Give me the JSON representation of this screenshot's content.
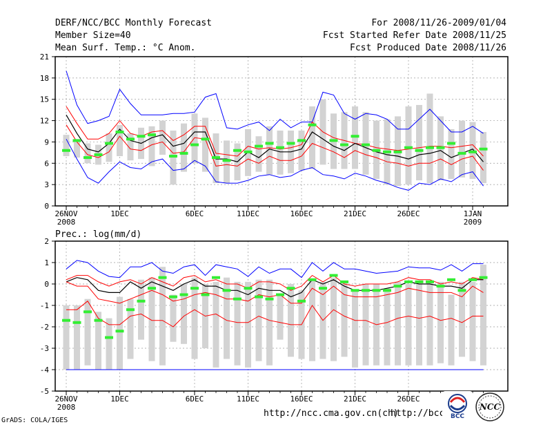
{
  "header": {
    "title": "DERF/NCC/BCC Monthly Forecast",
    "member": "Member Size=40",
    "variable": "Mean Surf. Temp.: °C Anom.",
    "period": "For 2008/11/26-2009/01/04",
    "started": "Fcst Started Refer Date 2008/11/25",
    "produced": "Fcst Produced Date 2008/11/26"
  },
  "footer": {
    "credit": "GrADS: COLA/IGES",
    "url1": "http://ncc.cma.gov.cn(ch)",
    "url2": "http://bcc.",
    "logo_bcc": "BCC",
    "logo_ncc": "NCC"
  },
  "colors": {
    "envelope_outer": "#0000ff",
    "envelope_inner": "#ff0000",
    "mean": "#000000",
    "bar": "#d3d3d3",
    "observed": "#33ee33"
  },
  "chart_data": [
    {
      "type": "line",
      "title": "Mean Surf. Temp.: °C Anom.",
      "ylim": [
        0,
        21
      ],
      "yticks": [
        0,
        3,
        6,
        9,
        12,
        15,
        18,
        21
      ],
      "xticks": [
        {
          "day": 0,
          "label": "26NOV",
          "sub": "2008"
        },
        {
          "day": 5,
          "label": "1DEC"
        },
        {
          "day": 12,
          "label": "6DEC"
        },
        {
          "day": 17,
          "label": "11DEC"
        },
        {
          "day": 22,
          "label": "16DEC"
        },
        {
          "day": 27,
          "label": "21DEC"
        },
        {
          "day": 32,
          "label": "26DEC"
        },
        {
          "day": 38,
          "label": "1JAN",
          "sub": "2009"
        }
      ],
      "series": [
        {
          "name": "max",
          "color": "#0000ff",
          "values": [
            19.0,
            14.2,
            11.6,
            12.0,
            12.6,
            16.4,
            14.4,
            12.8,
            12.8,
            12.8,
            13.0,
            13.0,
            13.2,
            15.3,
            15.8,
            11.0,
            10.8,
            11.4,
            11.8,
            10.6,
            12.2,
            11.0,
            11.8,
            11.8,
            16.0,
            15.6,
            13.0,
            12.2,
            13.0,
            12.8,
            12.2,
            10.8,
            10.8,
            12.2,
            13.6,
            12.0,
            10.4,
            10.4,
            11.2,
            10.2
          ]
        },
        {
          "name": "p75",
          "color": "#ff0000",
          "values": [
            14.0,
            11.6,
            9.4,
            9.4,
            10.2,
            12.0,
            10.2,
            9.8,
            10.4,
            10.6,
            9.2,
            10.0,
            11.2,
            11.2,
            7.4,
            7.2,
            7.0,
            8.4,
            8.0,
            8.2,
            8.0,
            8.2,
            8.6,
            11.8,
            10.4,
            9.6,
            9.2,
            8.8,
            8.6,
            8.2,
            8.0,
            7.8,
            8.0,
            8.2,
            8.4,
            8.4,
            8.2,
            8.4,
            8.6,
            7.0
          ]
        },
        {
          "name": "mean",
          "color": "#000000",
          "values": [
            12.8,
            10.2,
            8.0,
            7.6,
            8.8,
            10.8,
            9.2,
            8.8,
            9.6,
            10.0,
            8.4,
            8.8,
            10.4,
            10.4,
            6.6,
            6.6,
            6.2,
            7.6,
            6.8,
            8.0,
            7.6,
            7.6,
            8.0,
            10.4,
            9.4,
            8.4,
            7.8,
            8.8,
            8.2,
            7.6,
            7.2,
            7.0,
            6.6,
            7.2,
            7.4,
            7.8,
            6.8,
            7.4,
            8.0,
            6.2
          ]
        },
        {
          "name": "p25",
          "color": "#ff0000",
          "values": [
            11.4,
            9.0,
            7.2,
            6.8,
            7.6,
            9.8,
            8.0,
            7.8,
            8.6,
            9.0,
            7.4,
            7.6,
            9.6,
            9.4,
            5.6,
            5.8,
            5.6,
            6.6,
            6.0,
            7.0,
            6.4,
            6.4,
            7.0,
            8.8,
            8.2,
            7.6,
            6.8,
            7.8,
            7.2,
            6.8,
            6.2,
            6.0,
            5.6,
            6.0,
            6.0,
            6.6,
            5.8,
            6.6,
            7.0,
            5.0
          ]
        },
        {
          "name": "min",
          "color": "#0000ff",
          "values": [
            9.4,
            6.6,
            4.0,
            3.2,
            4.8,
            6.2,
            5.4,
            5.2,
            6.2,
            6.6,
            5.0,
            5.2,
            6.4,
            5.6,
            3.4,
            3.2,
            3.2,
            3.6,
            4.2,
            4.4,
            4.0,
            4.2,
            5.0,
            5.4,
            4.4,
            4.2,
            3.8,
            4.6,
            4.2,
            3.6,
            3.2,
            2.6,
            2.2,
            3.2,
            3.0,
            3.8,
            3.4,
            4.4,
            4.8,
            2.8
          ]
        }
      ],
      "bars_low": [
        7.0,
        6.8,
        6.0,
        5.8,
        6.2,
        7.0,
        6.4,
        6.6,
        5.6,
        7.2,
        3.0,
        4.8,
        6.0,
        4.8,
        3.2,
        3.2,
        3.6,
        4.2,
        4.8,
        4.4,
        4.4,
        4.6,
        5.0,
        5.2,
        5.8,
        5.2,
        5.2,
        5.2,
        4.4,
        3.8,
        3.0,
        2.8,
        3.0,
        3.6,
        3.2,
        3.6,
        3.8,
        4.0,
        3.8,
        3.2
      ],
      "bars_high": [
        10.0,
        9.2,
        8.8,
        8.6,
        10.2,
        11.4,
        10.2,
        11.0,
        11.2,
        12.0,
        10.6,
        11.6,
        13.0,
        12.4,
        10.2,
        9.2,
        8.8,
        10.8,
        9.8,
        11.2,
        10.6,
        10.6,
        10.6,
        14.0,
        15.0,
        13.0,
        13.2,
        14.0,
        13.2,
        12.0,
        12.2,
        12.6,
        14.0,
        14.2,
        15.8,
        12.6,
        10.8,
        12.0,
        11.8,
        10.4
      ],
      "observed": [
        7.8,
        9.2,
        6.8,
        7.2,
        8.8,
        10.4,
        9.4,
        9.8,
        10.0,
        null,
        7.0,
        7.4,
        8.6,
        9.4,
        6.8,
        6.4,
        7.8,
        7.6,
        8.4,
        8.8,
        8.2,
        8.8,
        9.2,
        11.4,
        null,
        9.2,
        8.6,
        9.8,
        8.6,
        7.8,
        7.6,
        7.6,
        8.2,
        7.8,
        8.2,
        8.2,
        8.8,
        7.4,
        7.6,
        8.0
      ]
    },
    {
      "type": "line",
      "title": "Prec.: log(mm/d)",
      "ylim": [
        -5,
        2
      ],
      "yticks": [
        -5,
        -4,
        -3,
        -2,
        -1,
        0,
        1,
        2
      ],
      "xticks": [
        {
          "day": 0,
          "label": "26NOV",
          "sub": "2008"
        },
        {
          "day": 5,
          "label": "1DEC"
        },
        {
          "day": 12,
          "label": "6DEC"
        },
        {
          "day": 17,
          "label": "11DEC"
        },
        {
          "day": 22,
          "label": "16DEC"
        },
        {
          "day": 27,
          "label": "21DEC"
        },
        {
          "day": 32,
          "label": "26DEC"
        }
      ],
      "series": [
        {
          "name": "max",
          "color": "#0000ff",
          "values": [
            0.7,
            1.1,
            1.0,
            0.6,
            0.35,
            0.3,
            0.8,
            0.8,
            1.0,
            0.6,
            0.5,
            0.8,
            0.9,
            0.4,
            0.9,
            0.8,
            0.7,
            0.35,
            0.8,
            0.5,
            0.7,
            0.7,
            0.3,
            1.0,
            0.6,
            1.0,
            0.7,
            0.7,
            0.6,
            0.5,
            0.55,
            0.6,
            0.8,
            0.75,
            0.75,
            0.65,
            0.9,
            0.6,
            0.95,
            0.95
          ]
        },
        {
          "name": "p75",
          "color": "#ff0000",
          "values": [
            0.2,
            0.4,
            0.4,
            0.1,
            -0.1,
            0.1,
            0.2,
            0.0,
            0.3,
            0.1,
            -0.1,
            0.3,
            0.4,
            0.1,
            0.2,
            0.0,
            0.0,
            -0.2,
            0.1,
            0.1,
            0.0,
            -0.3,
            -0.1,
            0.4,
            0.1,
            0.4,
            0.0,
            -0.1,
            0.0,
            0.0,
            0.0,
            0.1,
            0.3,
            0.2,
            0.2,
            0.0,
            0.1,
            0.0,
            0.3,
            0.2
          ]
        },
        {
          "name": "mean",
          "color": "#000000",
          "values": [
            0.1,
            0.3,
            0.2,
            -0.3,
            -0.4,
            -0.4,
            0.1,
            -0.2,
            0.1,
            -0.1,
            -0.3,
            0.0,
            0.2,
            -0.1,
            -0.1,
            -0.3,
            -0.3,
            -0.5,
            -0.2,
            -0.3,
            -0.3,
            -0.6,
            -0.4,
            0.2,
            0.0,
            0.2,
            -0.1,
            -0.3,
            -0.3,
            -0.3,
            -0.2,
            -0.1,
            0.1,
            0.0,
            0.0,
            -0.1,
            -0.1,
            -0.2,
            0.2,
            0.2
          ]
        },
        {
          "name": "p25",
          "color": "#ff0000",
          "values": [
            0.1,
            -0.1,
            -0.1,
            -0.7,
            -0.8,
            -0.9,
            -0.7,
            -0.5,
            -0.3,
            -0.5,
            -0.8,
            -0.7,
            -0.5,
            -0.4,
            -0.5,
            -0.7,
            -0.7,
            -0.8,
            -0.5,
            -0.6,
            -0.5,
            -0.9,
            -0.9,
            -0.2,
            -0.5,
            -0.1,
            -0.5,
            -0.6,
            -0.6,
            -0.6,
            -0.5,
            -0.4,
            -0.2,
            -0.3,
            -0.4,
            -0.4,
            -0.4,
            -0.6,
            -0.1,
            -0.4
          ]
        },
        {
          "name": "min",
          "color": "#ff0000",
          "values": [
            -1.2,
            -1.2,
            -0.8,
            -1.6,
            -1.9,
            -1.9,
            -1.5,
            -1.4,
            -1.7,
            -1.7,
            -2.0,
            -1.5,
            -1.2,
            -1.5,
            -1.4,
            -1.7,
            -1.8,
            -1.8,
            -1.5,
            -1.7,
            -1.8,
            -1.9,
            -1.9,
            -1.0,
            -1.7,
            -1.2,
            -1.5,
            -1.7,
            -1.7,
            -1.9,
            -1.8,
            -1.6,
            -1.5,
            -1.6,
            -1.5,
            -1.7,
            -1.6,
            -1.8,
            -1.5,
            -1.5
          ]
        }
      ],
      "baseline": {
        "value": -4,
        "color": "#0000ff"
      },
      "bars_low": [
        -4.0,
        -4.0,
        -3.8,
        -4.0,
        -4.0,
        -4.0,
        -3.5,
        -2.6,
        -3.6,
        -3.8,
        -2.7,
        -2.8,
        -3.5,
        -3.0,
        -3.9,
        -3.5,
        -3.8,
        -3.9,
        -3.6,
        -3.8,
        -2.6,
        -3.4,
        -3.5,
        -3.6,
        -3.5,
        -3.6,
        -3.4,
        -3.9,
        -3.8,
        -3.8,
        -3.8,
        -3.8,
        -3.8,
        -3.8,
        -3.8,
        -3.7,
        -3.8,
        -3.4,
        -3.6,
        -3.8
      ],
      "bars_high": [
        -1.0,
        -1.0,
        -0.7,
        -1.3,
        -1.6,
        -0.6,
        -0.7,
        0.2,
        0.3,
        0.8,
        -0.5,
        0.0,
        0.3,
        0.0,
        0.1,
        0.3,
        0.1,
        0.1,
        0.2,
        0.2,
        -0.5,
        0.0,
        -0.3,
        0.2,
        0.1,
        0.3,
        0.1,
        -0.3,
        0.0,
        0.0,
        -0.2,
        0.1,
        0.0,
        0.0,
        0.1,
        0.1,
        -0.5,
        0.1,
        0.1,
        0.9
      ],
      "observed": [
        -1.7,
        -1.8,
        -1.3,
        -1.7,
        -2.5,
        -2.2,
        -1.2,
        -0.8,
        -0.2,
        0.3,
        -0.6,
        -0.5,
        -0.2,
        -0.5,
        0.3,
        -0.3,
        -0.7,
        -0.2,
        -0.6,
        -0.7,
        -0.5,
        -0.2,
        -0.8,
        0.2,
        -0.2,
        0.4,
        0.1,
        -0.3,
        -0.3,
        -0.3,
        -0.3,
        -0.1,
        0.1,
        0.1,
        0.1,
        -0.1,
        0.2,
        -0.3,
        0.2,
        0.3
      ]
    }
  ]
}
